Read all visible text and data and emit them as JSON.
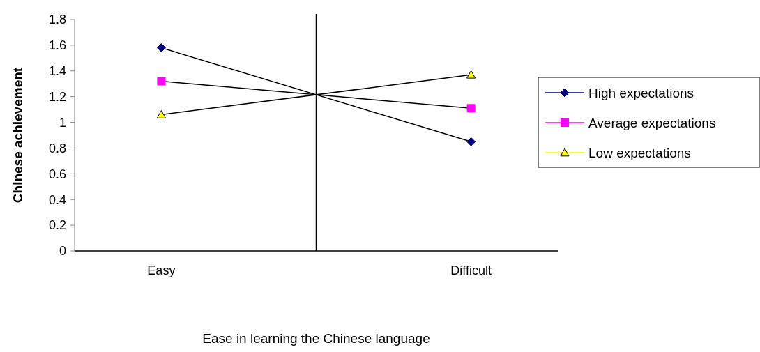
{
  "chart_data": {
    "type": "line",
    "xlabel": "Ease in learning the Chinese language",
    "ylabel": "Chinese achievement",
    "categories": [
      "Easy",
      "Difficult"
    ],
    "series": [
      {
        "name": "High expectations",
        "color": "#000080",
        "marker": "diamond",
        "values": [
          1.58,
          0.85
        ]
      },
      {
        "name": "Average expectations",
        "color": "#ff00ff",
        "marker": "square",
        "values": [
          1.32,
          1.11
        ]
      },
      {
        "name": "Low expectations",
        "color": "#ffff00",
        "marker": "triangle",
        "values": [
          1.06,
          1.37
        ]
      }
    ],
    "ylim": [
      0,
      1.8
    ],
    "yticks": [
      0,
      0.2,
      0.4,
      0.6,
      0.8,
      1,
      1.2,
      1.4,
      1.6,
      1.8
    ],
    "grid": false,
    "legend": "right"
  }
}
